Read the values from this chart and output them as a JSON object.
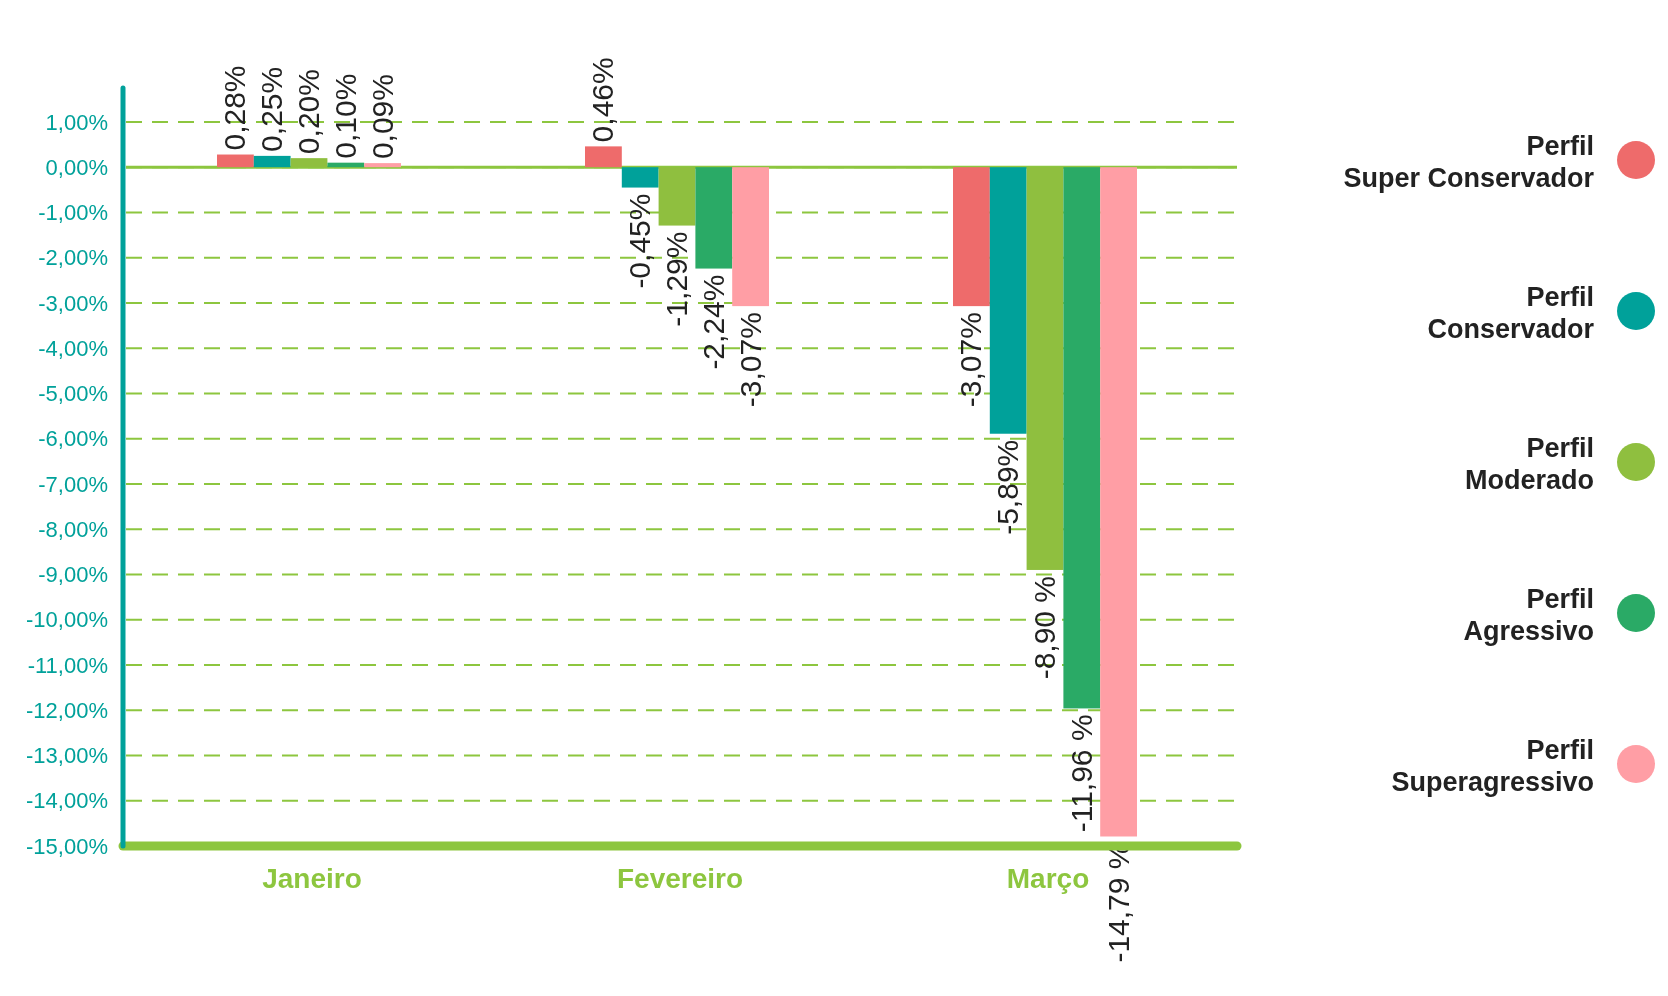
{
  "chart_data": {
    "type": "bar",
    "categories": [
      "Janeiro",
      "Fevereiro",
      "Março"
    ],
    "series": [
      {
        "name": "Perfil Super Conservador",
        "color": "#ee6b6b",
        "values": [
          0.28,
          0.46,
          -3.07
        ],
        "value_labels": [
          "0,28%",
          "0,46%",
          "-3,07%"
        ]
      },
      {
        "name": "Perfil Conservador",
        "color": "#00a19a",
        "values": [
          0.25,
          -0.45,
          -5.89
        ],
        "value_labels": [
          "0,25%",
          "-0,45%",
          "-5,89%"
        ]
      },
      {
        "name": "Perfil Moderado",
        "color": "#8fbf3f",
        "values": [
          0.2,
          -1.29,
          -8.9
        ],
        "value_labels": [
          "0,20%",
          "-1,29%",
          "-8,90 %"
        ]
      },
      {
        "name": "Perfil Agressivo",
        "color": "#2aaa66",
        "values": [
          0.1,
          -2.24,
          -11.96
        ],
        "value_labels": [
          "0,10%",
          "-2,24%",
          "-11,96 %"
        ]
      },
      {
        "name": "Perfil Superagressivo",
        "color": "#ff9ea5",
        "values": [
          0.09,
          -3.07,
          -14.79
        ],
        "value_labels": [
          "0,09%",
          "-3,07%",
          "-14,79 %"
        ]
      }
    ],
    "ylim": [
      -15,
      1.75
    ],
    "yticks": [
      {
        "value": 1,
        "label": "1,00%"
      },
      {
        "value": 0,
        "label": "0,00%"
      },
      {
        "value": -1,
        "label": "-1,00%"
      },
      {
        "value": -2,
        "label": "-2,00%"
      },
      {
        "value": -3,
        "label": "-3,00%"
      },
      {
        "value": -4,
        "label": "-4,00%"
      },
      {
        "value": -5,
        "label": "-5,00%"
      },
      {
        "value": -6,
        "label": "-6,00%"
      },
      {
        "value": -7,
        "label": "-7,00%"
      },
      {
        "value": -8,
        "label": "-8,00%"
      },
      {
        "value": -9,
        "label": "-9,00%"
      },
      {
        "value": -10,
        "label": "-10,00%"
      },
      {
        "value": -11,
        "label": "-11,00%"
      },
      {
        "value": -12,
        "label": "-12,00%"
      },
      {
        "value": -13,
        "label": "-13,00%"
      },
      {
        "value": -14,
        "label": "-14,00%"
      },
      {
        "value": -15,
        "label": "-15,00%"
      }
    ],
    "ref_lines": [
      {
        "axis": "y",
        "value": 0
      }
    ],
    "grid": "y",
    "legend": "right"
  }
}
